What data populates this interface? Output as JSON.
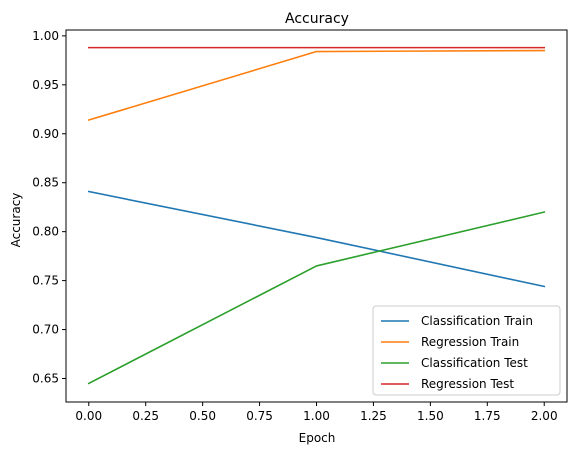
{
  "chart_data": {
    "type": "line",
    "title": "Accuracy",
    "xlabel": "Epoch",
    "ylabel": "Accuracy",
    "x": [
      0,
      1,
      2
    ],
    "xlim": [
      -0.1,
      2.1
    ],
    "ylim": [
      0.626,
      1.006
    ],
    "xticks": [
      0.0,
      0.25,
      0.5,
      0.75,
      1.0,
      1.25,
      1.5,
      1.75,
      2.0
    ],
    "xtick_labels": [
      "0.00",
      "0.25",
      "0.50",
      "0.75",
      "1.00",
      "1.25",
      "1.50",
      "1.75",
      "2.00"
    ],
    "yticks": [
      0.65,
      0.7,
      0.75,
      0.8,
      0.85,
      0.9,
      0.95,
      1.0
    ],
    "ytick_labels": [
      "0.65",
      "0.70",
      "0.75",
      "0.80",
      "0.85",
      "0.90",
      "0.95",
      "1.00"
    ],
    "grid": false,
    "legend_position": "bottom-right",
    "series": [
      {
        "name": "Classification Train",
        "values": [
          0.841,
          0.794,
          0.744
        ],
        "color": "#1f77b4"
      },
      {
        "name": "Regression Train",
        "values": [
          0.914,
          0.984,
          0.985
        ],
        "color": "#ff7f0e"
      },
      {
        "name": "Classification Test",
        "values": [
          0.645,
          0.765,
          0.82
        ],
        "color": "#2ca02c"
      },
      {
        "name": "Regression Test",
        "values": [
          0.988,
          0.988,
          0.988
        ],
        "color": "#d62728"
      }
    ]
  }
}
